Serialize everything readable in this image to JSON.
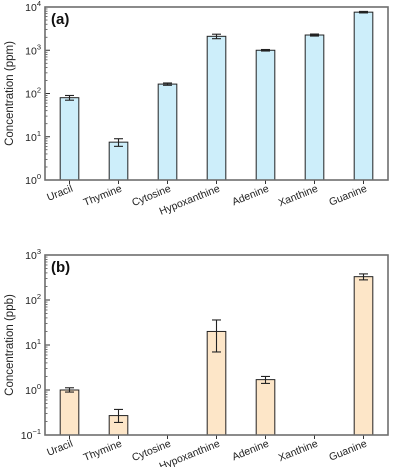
{
  "chart_data": [
    {
      "type": "bar",
      "panel_label": "(a)",
      "ylabel": "Concentration (ppm)",
      "yscale": "log",
      "ylim": [
        1,
        10000
      ],
      "yticks": [
        {
          "value": 1,
          "base": "10",
          "exp": "0"
        },
        {
          "value": 10,
          "base": "10",
          "exp": "1"
        },
        {
          "value": 100,
          "base": "10",
          "exp": "2"
        },
        {
          "value": 1000,
          "base": "10",
          "exp": "3"
        },
        {
          "value": 10000,
          "base": "10",
          "exp": "4"
        }
      ],
      "categories": [
        "Uracil",
        "Thymine",
        "Cytosine",
        "Hypoxanthine",
        "Adenine",
        "Xanthine",
        "Guanine"
      ],
      "values": [
        80,
        7.5,
        165,
        2100,
        1000,
        2250,
        7600
      ],
      "errors_low": [
        70,
        6.0,
        155,
        1850,
        960,
        2130,
        7300
      ],
      "errors_high": [
        90,
        9.0,
        175,
        2350,
        1040,
        2370,
        7900
      ],
      "bar_color": "#cdeefa",
      "grid": false
    },
    {
      "type": "bar",
      "panel_label": "(b)",
      "ylabel": "Concentration (ppb)",
      "yscale": "log",
      "ylim": [
        0.1,
        1000
      ],
      "yticks": [
        {
          "value": 0.1,
          "base": "10",
          "exp": "−1"
        },
        {
          "value": 1,
          "base": "10",
          "exp": "0"
        },
        {
          "value": 10,
          "base": "10",
          "exp": "1"
        },
        {
          "value": 100,
          "base": "10",
          "exp": "2"
        },
        {
          "value": 1000,
          "base": "10",
          "exp": "3"
        }
      ],
      "categories": [
        "Uracil",
        "Thymine",
        "Cytosine",
        "Hypoxanthine",
        "Adenine",
        "Xanthine",
        "Guanine"
      ],
      "values": [
        1.0,
        0.27,
        null,
        20,
        1.7,
        null,
        330
      ],
      "errors_low": [
        0.9,
        0.19,
        null,
        7,
        1.4,
        null,
        280
      ],
      "errors_high": [
        1.12,
        0.37,
        null,
        36,
        2.0,
        null,
        380
      ],
      "bar_color": "#fde6c8",
      "grid": false
    }
  ]
}
